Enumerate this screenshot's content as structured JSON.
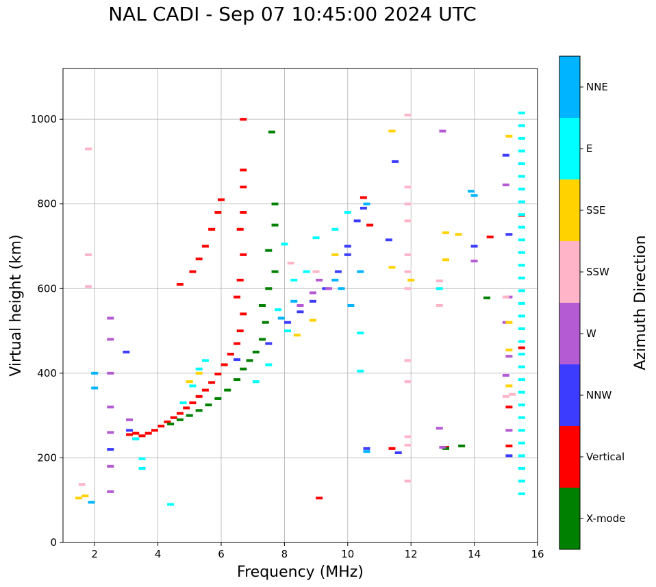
{
  "title": "NAL CADI - Sep 07 10:45:00 2024 UTC",
  "chart_data": {
    "type": "scatter",
    "title": "NAL CADI - Sep 07 10:45:00 2024 UTC",
    "xlabel": "Frequency (MHz)",
    "ylabel": "Virtual height (km)",
    "xlim": [
      1,
      16
    ],
    "ylim": [
      0,
      1120
    ],
    "xticks": [
      2,
      4,
      6,
      8,
      10,
      12,
      14,
      16
    ],
    "yticks": [
      0,
      200,
      400,
      600,
      800,
      1000
    ],
    "grid": true,
    "colorbar": {
      "label": "Azimuth Direction",
      "categories": [
        "X-mode",
        "Vertical",
        "NNW",
        "W",
        "SSW",
        "SSE",
        "E",
        "NNE"
      ],
      "colors": {
        "X-mode": "#008000",
        "Vertical": "#ff0000",
        "NNW": "#3c3cff",
        "W": "#b45ad2",
        "SSW": "#ffb4c8",
        "SSE": "#ffd200",
        "E": "#00ffff",
        "NNE": "#00b4ff"
      }
    },
    "series": [
      {
        "name": "Vertical",
        "points": [
          [
            3.1,
            255
          ],
          [
            3.3,
            258
          ],
          [
            3.5,
            252
          ],
          [
            3.7,
            258
          ],
          [
            3.9,
            265
          ],
          [
            4.1,
            275
          ],
          [
            4.3,
            285
          ],
          [
            4.5,
            295
          ],
          [
            4.7,
            305
          ],
          [
            4.9,
            318
          ],
          [
            5.1,
            330
          ],
          [
            5.3,
            345
          ],
          [
            5.5,
            360
          ],
          [
            5.7,
            378
          ],
          [
            5.9,
            398
          ],
          [
            6.1,
            420
          ],
          [
            6.3,
            445
          ],
          [
            6.5,
            470
          ],
          [
            6.6,
            500
          ],
          [
            6.7,
            540
          ],
          [
            6.5,
            580
          ],
          [
            6.6,
            620
          ],
          [
            6.7,
            680
          ],
          [
            6.6,
            740
          ],
          [
            6.7,
            780
          ],
          [
            6.7,
            840
          ],
          [
            6.7,
            880
          ],
          [
            6.7,
            1000
          ],
          [
            5.1,
            640
          ],
          [
            5.3,
            670
          ],
          [
            5.5,
            700
          ],
          [
            5.7,
            740
          ],
          [
            5.9,
            780
          ],
          [
            6.0,
            810
          ],
          [
            4.7,
            610
          ],
          [
            9.1,
            105
          ],
          [
            10.7,
            750
          ],
          [
            10.5,
            815
          ],
          [
            11.4,
            222
          ],
          [
            13.1,
            225
          ],
          [
            14.5,
            722
          ],
          [
            15.1,
            320
          ],
          [
            15.1,
            228
          ],
          [
            15.5,
            773
          ],
          [
            15.5,
            460
          ]
        ]
      },
      {
        "name": "X-mode",
        "points": [
          [
            4.4,
            280
          ],
          [
            4.7,
            290
          ],
          [
            5.0,
            300
          ],
          [
            5.3,
            312
          ],
          [
            5.6,
            325
          ],
          [
            5.9,
            340
          ],
          [
            6.2,
            360
          ],
          [
            6.5,
            385
          ],
          [
            6.7,
            410
          ],
          [
            6.9,
            430
          ],
          [
            7.1,
            450
          ],
          [
            7.3,
            480
          ],
          [
            7.4,
            520
          ],
          [
            7.3,
            560
          ],
          [
            7.5,
            600
          ],
          [
            7.7,
            640
          ],
          [
            7.5,
            690
          ],
          [
            7.7,
            750
          ],
          [
            7.7,
            800
          ],
          [
            7.6,
            970
          ],
          [
            13.1,
            222
          ],
          [
            13.6,
            228
          ],
          [
            14.4,
            578
          ]
        ]
      },
      {
        "name": "NNW",
        "points": [
          [
            3.1,
            265
          ],
          [
            3.3,
            245
          ],
          [
            6.5,
            432
          ],
          [
            7.5,
            470
          ],
          [
            8.1,
            520
          ],
          [
            8.5,
            545
          ],
          [
            8.9,
            570
          ],
          [
            9.3,
            600
          ],
          [
            9.7,
            640
          ],
          [
            10.0,
            680
          ],
          [
            10.0,
            700
          ],
          [
            10.3,
            760
          ],
          [
            10.5,
            790
          ],
          [
            10.6,
            222
          ],
          [
            11.3,
            715
          ],
          [
            11.6,
            212
          ],
          [
            11.5,
            900
          ],
          [
            14.0,
            700
          ],
          [
            15.0,
            915
          ],
          [
            15.1,
            728
          ],
          [
            15.1,
            205
          ],
          [
            2.5,
            220
          ],
          [
            3.0,
            450
          ]
        ]
      },
      {
        "name": "W",
        "points": [
          [
            2.5,
            530
          ],
          [
            2.5,
            480
          ],
          [
            2.5,
            400
          ],
          [
            2.5,
            320
          ],
          [
            2.5,
            260
          ],
          [
            2.5,
            180
          ],
          [
            2.5,
            120
          ],
          [
            3.1,
            290
          ],
          [
            8.5,
            560
          ],
          [
            8.9,
            590
          ],
          [
            9.1,
            620
          ],
          [
            9.4,
            600
          ],
          [
            12.9,
            270
          ],
          [
            13.0,
            225
          ],
          [
            13.0,
            972
          ],
          [
            14.0,
            665
          ],
          [
            15.0,
            845
          ],
          [
            15.0,
            520
          ],
          [
            15.1,
            440
          ],
          [
            15.0,
            395
          ],
          [
            15.1,
            265
          ],
          [
            15.1,
            580
          ]
        ]
      },
      {
        "name": "SSW",
        "points": [
          [
            1.6,
            137
          ],
          [
            1.8,
            930
          ],
          [
            1.8,
            680
          ],
          [
            1.8,
            605
          ],
          [
            11.9,
            1010
          ],
          [
            11.9,
            840
          ],
          [
            11.9,
            800
          ],
          [
            11.9,
            760
          ],
          [
            11.9,
            680
          ],
          [
            11.9,
            640
          ],
          [
            11.9,
            600
          ],
          [
            11.9,
            430
          ],
          [
            11.9,
            380
          ],
          [
            11.9,
            250
          ],
          [
            11.9,
            230
          ],
          [
            11.9,
            145
          ],
          [
            12.9,
            618
          ],
          [
            12.9,
            560
          ],
          [
            8.2,
            660
          ],
          [
            9.0,
            640
          ],
          [
            15.0,
            580
          ],
          [
            15.0,
            345
          ],
          [
            15.2,
            350
          ]
        ]
      },
      {
        "name": "SSE",
        "points": [
          [
            1.5,
            105
          ],
          [
            1.7,
            110
          ],
          [
            5.0,
            380
          ],
          [
            5.3,
            400
          ],
          [
            8.4,
            490
          ],
          [
            8.9,
            525
          ],
          [
            9.6,
            680
          ],
          [
            11.4,
            972
          ],
          [
            12.0,
            620
          ],
          [
            13.1,
            732
          ],
          [
            13.1,
            668
          ],
          [
            15.1,
            960
          ],
          [
            15.1,
            520
          ],
          [
            15.1,
            455
          ],
          [
            15.1,
            370
          ],
          [
            11.4,
            650
          ],
          [
            13.5,
            728
          ]
        ]
      },
      {
        "name": "E",
        "points": [
          [
            3.3,
            245
          ],
          [
            4.8,
            330
          ],
          [
            5.1,
            370
          ],
          [
            5.3,
            410
          ],
          [
            5.5,
            430
          ],
          [
            7.1,
            380
          ],
          [
            7.5,
            420
          ],
          [
            8.0,
            705
          ],
          [
            7.8,
            550
          ],
          [
            8.1,
            500
          ],
          [
            8.3,
            620
          ],
          [
            8.7,
            640
          ],
          [
            9.0,
            720
          ],
          [
            9.6,
            740
          ],
          [
            10.0,
            780
          ],
          [
            10.4,
            495
          ],
          [
            10.4,
            405
          ],
          [
            12.9,
            600
          ],
          [
            15.5,
            1015
          ],
          [
            15.5,
            985
          ],
          [
            15.5,
            955
          ],
          [
            15.5,
            925
          ],
          [
            15.5,
            895
          ],
          [
            15.5,
            865
          ],
          [
            15.5,
            835
          ],
          [
            15.5,
            805
          ],
          [
            15.5,
            775
          ],
          [
            15.5,
            745
          ],
          [
            15.5,
            715
          ],
          [
            15.5,
            685
          ],
          [
            15.5,
            655
          ],
          [
            15.5,
            625
          ],
          [
            15.5,
            595
          ],
          [
            15.5,
            565
          ],
          [
            15.5,
            535
          ],
          [
            15.5,
            505
          ],
          [
            15.5,
            475
          ],
          [
            15.5,
            445
          ],
          [
            15.5,
            415
          ],
          [
            15.5,
            385
          ],
          [
            15.5,
            355
          ],
          [
            15.5,
            325
          ],
          [
            15.5,
            295
          ],
          [
            15.5,
            265
          ],
          [
            15.5,
            235
          ],
          [
            15.5,
            205
          ],
          [
            15.5,
            175
          ],
          [
            15.5,
            145
          ],
          [
            15.5,
            115
          ],
          [
            4.4,
            90
          ],
          [
            3.5,
            175
          ],
          [
            3.5,
            198
          ]
        ]
      },
      {
        "name": "NNE",
        "points": [
          [
            1.9,
            95
          ],
          [
            2.0,
            400
          ],
          [
            2.0,
            365
          ],
          [
            7.9,
            530
          ],
          [
            8.3,
            570
          ],
          [
            9.8,
            600
          ],
          [
            10.1,
            560
          ],
          [
            10.6,
            800
          ],
          [
            10.4,
            640
          ],
          [
            10.6,
            215
          ],
          [
            14.0,
            820
          ],
          [
            13.9,
            830
          ],
          [
            9.6,
            620
          ]
        ]
      }
    ]
  }
}
